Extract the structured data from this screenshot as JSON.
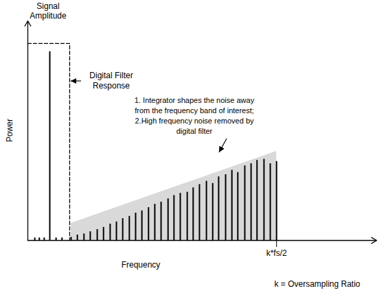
{
  "chart_data": {
    "type": "stem",
    "x_label": "Frequency",
    "y_label": "Power",
    "caption": "k = Oversampling Ratio",
    "xlim": [
      0,
      100
    ],
    "ylim": [
      0,
      100
    ],
    "xticks": [
      {
        "value": 71.3,
        "label": "k*fs/2"
      }
    ],
    "yticks": [],
    "tick_labels": "x",
    "grid": false,
    "series": [
      {
        "name": "Signal Amplitude",
        "type": "stem",
        "color": "#000000",
        "x": [
          6.3
        ],
        "values": [
          86
        ]
      },
      {
        "type": "stem",
        "color": "#000000",
        "x": [
          2.0,
          3.3,
          4.7,
          8.1,
          9.8
        ],
        "values": [
          1.2,
          1.2,
          1.2,
          1.2,
          1.2
        ]
      },
      {
        "name": "Digital Filter Response",
        "type": "line",
        "line_style": "dashed",
        "color": "#000000",
        "x": [
          0,
          12,
          12
        ],
        "values": [
          89.7,
          89.7,
          0
        ]
      },
      {
        "type": "area",
        "color": "#d9d9d9",
        "x": [
          12.4,
          71.3
        ],
        "values": [
          7.8,
          40.6
        ]
      },
      {
        "type": "stem",
        "color": "#000000",
        "x": [
          12.4,
          14.2,
          16.1,
          17.9,
          19.9,
          21.7,
          23.6,
          25.4,
          27.2,
          29.1,
          30.9,
          32.7,
          34.6,
          36.4,
          38.2,
          40.2,
          41.9,
          43.7,
          45.7,
          47.4,
          49.2,
          51.2,
          53.0,
          54.7,
          56.7,
          58.5,
          60.2,
          62.2,
          64.0,
          65.7,
          67.7,
          69.5,
          71.3
        ],
        "values": [
          1.5,
          2.5,
          3,
          4,
          5,
          6,
          7.5,
          8.5,
          10,
          11,
          12.5,
          13.5,
          15,
          16.5,
          17.5,
          19,
          20.5,
          21.5,
          22,
          24,
          25.5,
          27,
          26,
          29,
          30,
          32,
          31,
          34,
          35,
          36.5,
          37,
          35,
          36
        ]
      }
    ],
    "annotations": [
      {
        "text": [
          "1. Integrator shapes the noise away",
          "from the frequency band of interest;",
          "2.High frequency noise removed by",
          "digital filter"
        ]
      }
    ]
  }
}
